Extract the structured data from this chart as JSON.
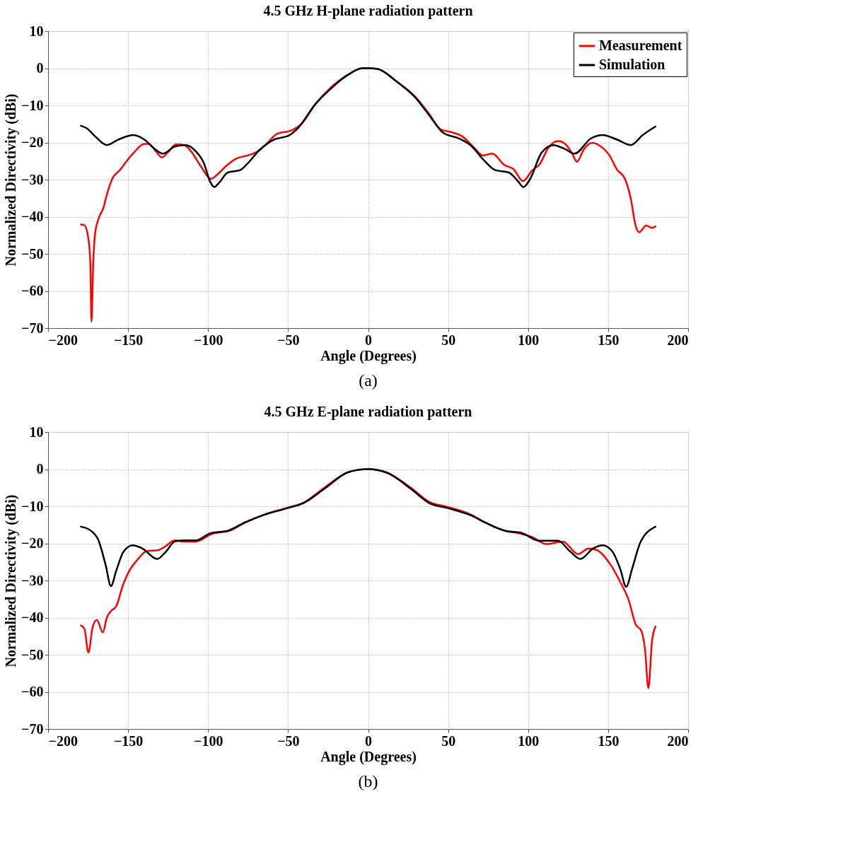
{
  "chart_data": [
    {
      "type": "line",
      "title": "4.5 GHz H-plane radiation pattern",
      "xlabel": "Angle (Degrees)",
      "ylabel": "Normalized Directivity (dBi)",
      "annotations": [
        "(a)"
      ],
      "xlim": [
        -200,
        200
      ],
      "xticks": [
        -200,
        -150,
        -100,
        -50,
        0,
        50,
        100,
        150,
        200
      ],
      "ylim": [
        -70,
        10
      ],
      "yticks": [
        -70,
        -60,
        -50,
        -40,
        -30,
        -20,
        -10,
        0,
        10
      ],
      "grid": true,
      "legend": "top right",
      "marker": "none",
      "line_style": "solid",
      "series": [
        {
          "name": "Measurement",
          "color": "#ff0000",
          "x": [
            -179.5,
            -177.3,
            -175,
            -173.6,
            -172.9,
            -171.8,
            -170.7,
            -168.5,
            -165.5,
            -163.3,
            -159.7,
            -155.3,
            -149.4,
            -145.7,
            -139.9,
            -137,
            -132.6,
            -128.9,
            -125.2,
            -120.1,
            -115,
            -110.6,
            -104.7,
            -98.1,
            -94.4,
            -88.6,
            -82.7,
            -75.4,
            -70.2,
            -63.6,
            -57,
            -47.5,
            -41.6,
            -32.8,
            -24,
            -12.3,
            -3.5,
            0,
            5.9,
            17.6,
            29.3,
            38.1,
            45.5,
            52.8,
            58.7,
            66,
            71.8,
            77.7,
            85,
            90.9,
            96.8,
            102.6,
            107,
            112.9,
            118.8,
            123.2,
            127.6,
            130.5,
            134.9,
            140,
            145.2,
            151,
            155.4,
            160.6,
            164.2,
            167.2,
            169.4,
            173.8,
            177.4,
            179.6
          ],
          "values": [
            -42.1,
            -42.3,
            -45.4,
            -52.5,
            -68.3,
            -52.5,
            -44.8,
            -40.6,
            -37.7,
            -34.1,
            -29.6,
            -27.5,
            -24.2,
            -22.4,
            -20.4,
            -20.4,
            -22.4,
            -24,
            -22.7,
            -20.5,
            -20.7,
            -22.4,
            -26.3,
            -29.8,
            -28.7,
            -26.3,
            -24.4,
            -23.5,
            -22.7,
            -20.4,
            -17.7,
            -16.7,
            -15,
            -9.6,
            -5.5,
            -1.7,
            0,
            0,
            -0.2,
            -3.5,
            -7.6,
            -12.3,
            -16.5,
            -17.3,
            -18.3,
            -21.3,
            -23.5,
            -23,
            -26,
            -27.2,
            -30.4,
            -27.5,
            -26,
            -21.3,
            -19.6,
            -20.4,
            -23,
            -25.2,
            -21.8,
            -20.1,
            -21,
            -23.6,
            -27.2,
            -29.9,
            -35.2,
            -42.4,
            -44.2,
            -42.4,
            -43,
            -42.6
          ]
        },
        {
          "name": "Simulation",
          "color": "#000000",
          "x": [
            -179.5,
            -175.8,
            -170.7,
            -163.3,
            -156,
            -146.5,
            -139.9,
            -134,
            -128.2,
            -120.8,
            -114.2,
            -107.6,
            -102.5,
            -98.8,
            -96.2,
            -93,
            -87.8,
            -79.8,
            -75.4,
            -68,
            -59.2,
            -49,
            -44.6,
            -32.8,
            -24,
            -12.3,
            -3.5,
            0,
            5.9,
            17.6,
            29.3,
            38.1,
            46.9,
            57.2,
            64.5,
            71.8,
            79.2,
            88,
            93.8,
            97.1,
            101.2,
            108.5,
            115.8,
            123.2,
            129,
            139.3,
            146.6,
            155.4,
            164.2,
            171.6,
            179.6
          ],
          "values": [
            -15.5,
            -16.2,
            -18.3,
            -20.7,
            -19.2,
            -18,
            -19.2,
            -21.5,
            -23,
            -21.1,
            -20.7,
            -22.4,
            -25.7,
            -30.5,
            -32,
            -30.8,
            -28.1,
            -27.4,
            -25.7,
            -22.1,
            -19.3,
            -18,
            -16.5,
            -9.6,
            -5.8,
            -1.7,
            0,
            0,
            -0.2,
            -3.5,
            -7.8,
            -12.6,
            -17.4,
            -19,
            -20.9,
            -24.5,
            -27.4,
            -28.1,
            -30.5,
            -32,
            -29.9,
            -22.7,
            -20.7,
            -21.8,
            -23,
            -18.9,
            -18,
            -19.2,
            -20.7,
            -18,
            -15.7
          ]
        }
      ]
    },
    {
      "type": "line",
      "title": "4.5 GHz E-plane radiation pattern",
      "xlabel": "Angle (Degrees)",
      "ylabel": "Normalized Directivity (dBi)",
      "annotations": [
        "(b)"
      ],
      "xlim": [
        -200,
        200
      ],
      "xticks": [
        -200,
        -150,
        -100,
        -50,
        0,
        50,
        100,
        150,
        200
      ],
      "ylim": [
        -70,
        10
      ],
      "yticks": [
        -70,
        -60,
        -50,
        -40,
        -30,
        -20,
        -10,
        0,
        10
      ],
      "grid": true,
      "legend": "top right",
      "marker": "none",
      "line_style": "solid",
      "series": [
        {
          "name": "Measurement",
          "color": "#ff0000",
          "x": [
            -179.5,
            -177.3,
            -174.8,
            -172.1,
            -169.5,
            -165.8,
            -163.3,
            -160.4,
            -157.5,
            -153.1,
            -149.4,
            -144.3,
            -138.4,
            -131.1,
            -126.7,
            -120.8,
            -115,
            -107.6,
            -97.4,
            -87.1,
            -76.8,
            -65.1,
            -50.4,
            -40.2,
            -27,
            -12.3,
            0,
            11.7,
            26.4,
            38.1,
            49.9,
            64.5,
            73.3,
            85,
            95.3,
            102.6,
            111.4,
            121.7,
            131.2,
            137.8,
            143,
            151,
            158.4,
            162.8,
            167.2,
            170.8,
            173,
            175.2,
            177.4,
            179.6
          ],
          "values": [
            -42.1,
            -43,
            -49.4,
            -42.4,
            -40.6,
            -44,
            -40,
            -38.1,
            -37,
            -31.1,
            -27.5,
            -24.5,
            -22.1,
            -21.8,
            -20.8,
            -19.2,
            -19.5,
            -19.5,
            -17.4,
            -16.7,
            -14.4,
            -12.3,
            -10.4,
            -9,
            -4.9,
            -0.8,
            0,
            -1,
            -4.9,
            -8.8,
            -10.2,
            -12.3,
            -14.4,
            -16.5,
            -17.4,
            -18.3,
            -20.2,
            -19.5,
            -22.9,
            -21.4,
            -21.8,
            -25.4,
            -31.1,
            -35.2,
            -41.8,
            -43.6,
            -48.3,
            -59,
            -46.5,
            -42.4
          ]
        },
        {
          "name": "Simulation",
          "color": "#000000",
          "x": [
            -179.5,
            -173.6,
            -168.5,
            -164.1,
            -160.7,
            -157.5,
            -153.1,
            -147.2,
            -141.3,
            -131.8,
            -126.7,
            -120.8,
            -115,
            -107.6,
            -98.8,
            -87.1,
            -76.8,
            -65.1,
            -50.4,
            -40.2,
            -27,
            -12.3,
            0,
            11.7,
            26.4,
            38.1,
            49.9,
            64.5,
            73.3,
            86.5,
            95.3,
            107,
            118.8,
            126.1,
            132.7,
            140.8,
            146.6,
            152.5,
            157.6,
            161.3,
            165,
            170.1,
            179.6
          ],
          "values": [
            -15.5,
            -16.5,
            -19.2,
            -25.7,
            -31.5,
            -27.5,
            -22.4,
            -20.5,
            -21.3,
            -24.2,
            -22.4,
            -19.5,
            -19.2,
            -19.2,
            -17.3,
            -16.5,
            -14.3,
            -12.3,
            -10.5,
            -9.1,
            -5.2,
            -0.8,
            0,
            -0.9,
            -5.2,
            -9.1,
            -10.5,
            -12.5,
            -14.4,
            -16.7,
            -17.1,
            -19.3,
            -19.3,
            -22.1,
            -24.2,
            -21.3,
            -20.5,
            -22.1,
            -26.9,
            -31.7,
            -26.9,
            -19.8,
            -15.5
          ]
        }
      ]
    }
  ]
}
